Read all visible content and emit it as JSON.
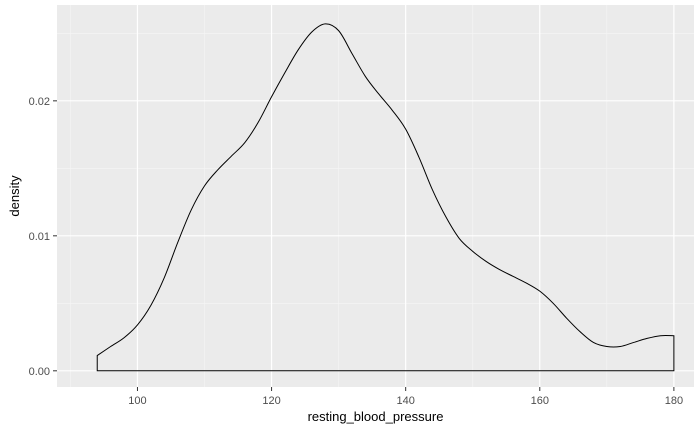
{
  "chart_data": {
    "type": "area",
    "title": "",
    "xlabel": "resting_blood_pressure",
    "ylabel": "density",
    "xlim": [
      88,
      183
    ],
    "ylim": [
      -0.0012,
      0.0271
    ],
    "x_ticks": [
      100,
      120,
      140,
      160,
      180
    ],
    "y_ticks": [
      0.0,
      0.01,
      0.02
    ],
    "y_tick_labels": [
      "0.00",
      "0.01",
      "0.02"
    ],
    "grid": true,
    "legend": "none",
    "colors": {
      "panel_background": "#ebebeb",
      "grid_major": "#ffffff",
      "grid_minor": "#f5f5f5",
      "line": "#000000",
      "fill": "none"
    },
    "series": [
      {
        "x": [
          94,
          96,
          98,
          100,
          102,
          104,
          106,
          108,
          110,
          112,
          114,
          116,
          118,
          120,
          122,
          124,
          126,
          128,
          130,
          132,
          134,
          136,
          138,
          140,
          142,
          144,
          146,
          148,
          150,
          152,
          154,
          156,
          158,
          160,
          162,
          164,
          166,
          168,
          170,
          172,
          174,
          176,
          178,
          180
        ],
        "density": [
          0.00113,
          0.0018,
          0.00245,
          0.0034,
          0.00485,
          0.0069,
          0.0095,
          0.0119,
          0.0137,
          0.0149,
          0.0159,
          0.0169,
          0.0184,
          0.0203,
          0.0221,
          0.0238,
          0.0251,
          0.0257,
          0.0252,
          0.0235,
          0.0218,
          0.0205,
          0.0193,
          0.0179,
          0.0158,
          0.0134,
          0.0114,
          0.0098,
          0.00885,
          0.0081,
          0.0075,
          0.007,
          0.0065,
          0.0059,
          0.005,
          0.0039,
          0.0029,
          0.0021,
          0.0018,
          0.0018,
          0.0021,
          0.0024,
          0.0026,
          0.0026
        ]
      }
    ]
  }
}
